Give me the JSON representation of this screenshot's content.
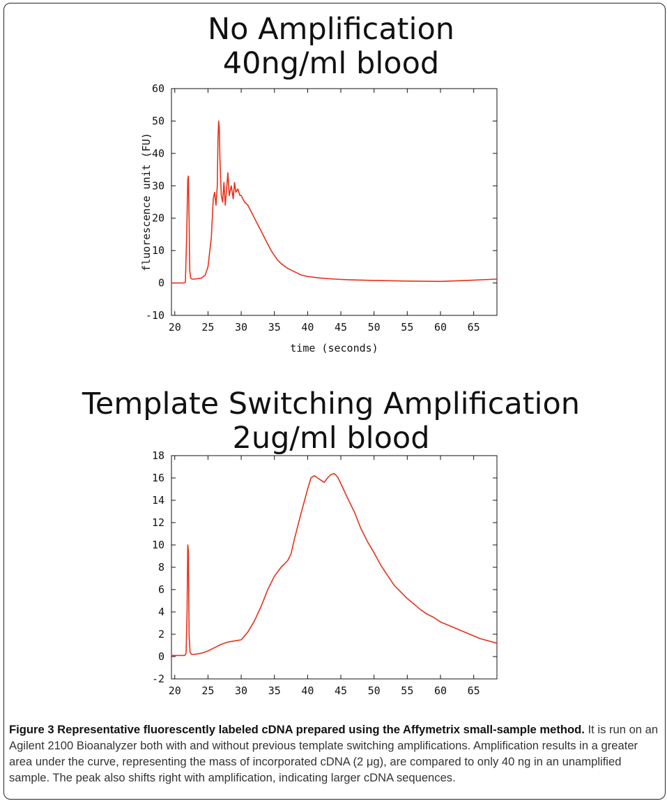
{
  "panels": [
    {
      "title_line1": "No Amplification",
      "title_line2": "40ng/ml blood"
    },
    {
      "title_line1": "Template Switching Amplification",
      "title_line2": "2ug/ml blood"
    }
  ],
  "caption": {
    "head": "Figure 3 Representative fluorescently labeled cDNA prepared using the Affymetrix small-sample method.",
    "body": "It is run on an Agilent 2100 Bioanalyzer both with and without previous template switching amplifications. Amplification results in a greater area under the curve, representing the mass of incorporated cDNA (2 μg), are compared to only 40 ng in an unamplified sample. The peak also shifts right with amplification, indicating larger cDNA sequences."
  },
  "chart_data": [
    {
      "type": "line",
      "title": "No Amplification 40ng/ml blood",
      "xlabel": "time (seconds)",
      "ylabel": "fluorescence unit (FU)",
      "xlim": [
        19.5,
        68.5
      ],
      "ylim": [
        -10,
        60
      ],
      "xticks": [
        20,
        25,
        30,
        35,
        40,
        45,
        50,
        55,
        60,
        65
      ],
      "yticks": [
        -10,
        0,
        10,
        20,
        30,
        40,
        50,
        60
      ],
      "line_color": "#e8301a",
      "series": [
        {
          "x": [
            19.5,
            21.4,
            21.6,
            21.8,
            21.95,
            22.05,
            22.15,
            22.25,
            22.4,
            22.6,
            23.0,
            24.0,
            24.6,
            25.0,
            25.5,
            25.8,
            26.0,
            26.2,
            26.4,
            26.5,
            26.6,
            26.7,
            26.8,
            27.0,
            27.2,
            27.4,
            27.6,
            27.8,
            28.0,
            28.2,
            28.5,
            28.8,
            29.0,
            29.2,
            29.5,
            29.8,
            30.0,
            30.5,
            31.0,
            31.5,
            32.0,
            32.5,
            33.0,
            33.5,
            34.0,
            34.5,
            35.0,
            35.5,
            36.0,
            37.0,
            38.0,
            39.0,
            40.0,
            42.0,
            44.0,
            46.0,
            50.0,
            55.0,
            60.0,
            64.0,
            68.5
          ],
          "y": [
            0,
            0,
            0.3,
            15,
            32,
            33,
            20,
            4,
            1.5,
            1.2,
            1.2,
            1.5,
            2.5,
            5,
            14,
            26,
            28,
            24,
            30,
            44,
            50,
            48,
            38,
            27,
            25,
            31,
            24,
            29,
            34,
            27,
            30,
            26,
            31,
            28,
            29,
            27,
            27,
            25,
            24,
            22,
            20,
            18,
            16,
            14,
            12,
            10,
            8.5,
            7,
            6,
            4.5,
            3.5,
            2.5,
            2,
            1.5,
            1.2,
            1,
            0.8,
            0.6,
            0.5,
            0.8,
            1.2
          ]
        }
      ]
    },
    {
      "type": "line",
      "title": "Template Switching Amplification 2ug/ml blood",
      "xlabel": "",
      "ylabel": "",
      "xlim": [
        19.5,
        68.5
      ],
      "ylim": [
        -2,
        18
      ],
      "xticks": [
        20,
        25,
        30,
        35,
        40,
        45,
        50,
        55,
        60,
        65
      ],
      "yticks": [
        -2,
        0,
        2,
        4,
        6,
        8,
        10,
        12,
        14,
        16,
        18
      ],
      "line_color": "#e8301a",
      "series": [
        {
          "x": [
            19.5,
            21.5,
            21.7,
            21.85,
            21.95,
            22.05,
            22.15,
            22.3,
            22.5,
            23.0,
            24.0,
            25.0,
            26.0,
            27.0,
            28.0,
            29.0,
            30.0,
            31.0,
            32.0,
            33.0,
            34.0,
            35.0,
            36.0,
            37.0,
            37.5,
            38.0,
            39.0,
            40.0,
            40.5,
            41.0,
            41.5,
            42.0,
            42.5,
            43.0,
            43.5,
            44.0,
            44.5,
            45.0,
            46.0,
            47.0,
            48.0,
            49.0,
            50.0,
            51.0,
            52.0,
            53.0,
            54.0,
            55.0,
            56.0,
            57.0,
            58.0,
            59.0,
            60.0,
            62.0,
            64.0,
            66.0,
            68.5
          ],
          "y": [
            0.1,
            0.1,
            0.3,
            4,
            10,
            9.5,
            2,
            0.4,
            0.2,
            0.2,
            0.3,
            0.5,
            0.8,
            1.1,
            1.3,
            1.4,
            1.5,
            2.2,
            3.2,
            4.5,
            6.0,
            7.2,
            8.0,
            8.6,
            9.2,
            10.5,
            12.8,
            15,
            16,
            16.2,
            16.0,
            15.8,
            15.6,
            16.0,
            16.3,
            16.4,
            16.1,
            15.5,
            14.2,
            13,
            11.5,
            10.3,
            9.3,
            8.2,
            7.3,
            6.4,
            5.8,
            5.2,
            4.7,
            4.2,
            3.8,
            3.5,
            3.1,
            2.6,
            2.1,
            1.6,
            1.2
          ]
        }
      ]
    }
  ]
}
